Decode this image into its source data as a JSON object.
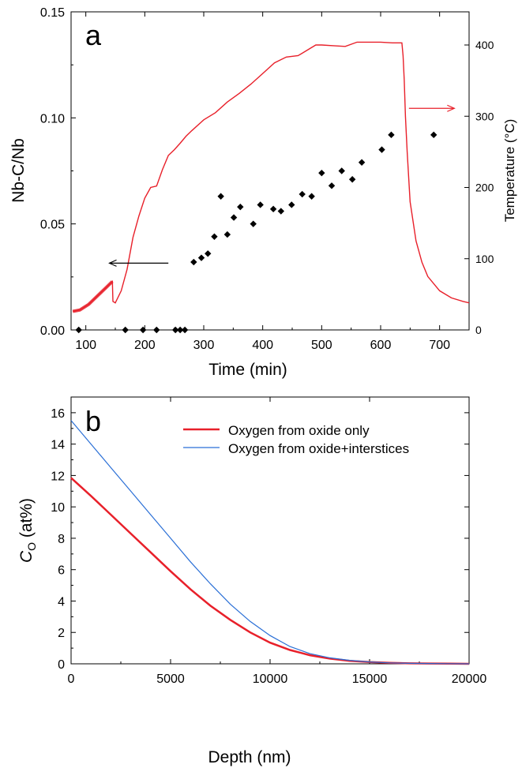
{
  "chart_data": [
    {
      "panel_label": "a",
      "type": "line+scatter",
      "xlabel": "Time (min)",
      "ylabel": "Nb-C/Nb",
      "y2label": "Temperature (°C)",
      "xlim": [
        75,
        750
      ],
      "ylim": [
        0,
        0.15
      ],
      "y2lim": [
        0,
        450
      ],
      "x_ticks": [
        100,
        200,
        300,
        400,
        500,
        600,
        700
      ],
      "y_ticks": [
        0.0,
        0.05,
        0.1,
        0.15
      ],
      "y2_ticks": [
        0,
        100,
        200,
        300,
        400
      ],
      "y_tick_labels": [
        "0.00",
        "0.05",
        "0.10",
        "0.15"
      ],
      "series": [
        {
          "axis": "left",
          "style": "scatter",
          "marker": "diamond",
          "color": "#000000",
          "points": [
            [
              88,
              0.0
            ],
            [
              167,
              0.0
            ],
            [
              197,
              0.0
            ],
            [
              220,
              0.0
            ],
            [
              252,
              0.0
            ],
            [
              260,
              0.0
            ],
            [
              268,
              0.0
            ],
            [
              283,
              0.032
            ],
            [
              296,
              0.034
            ],
            [
              307,
              0.036
            ],
            [
              318,
              0.044
            ],
            [
              329,
              0.063
            ],
            [
              340,
              0.045
            ],
            [
              351,
              0.053
            ],
            [
              362,
              0.058
            ],
            [
              384,
              0.05
            ],
            [
              396,
              0.059
            ],
            [
              418,
              0.057
            ],
            [
              431,
              0.056
            ],
            [
              449,
              0.059
            ],
            [
              467,
              0.064
            ],
            [
              483,
              0.063
            ],
            [
              500,
              0.074
            ],
            [
              517,
              0.068
            ],
            [
              534,
              0.075
            ],
            [
              552,
              0.071
            ],
            [
              568,
              0.079
            ],
            [
              602,
              0.085
            ],
            [
              618,
              0.092
            ],
            [
              690,
              0.092
            ]
          ]
        },
        {
          "axis": "right",
          "style": "line",
          "color": "#e8202a",
          "points": [
            [
              78,
              26
            ],
            [
              90,
              28
            ],
            [
              105,
              36
            ],
            [
              120,
              48
            ],
            [
              135,
              60
            ],
            [
              145,
              68
            ],
            [
              146,
              40
            ],
            [
              150,
              38
            ],
            [
              160,
              55
            ],
            [
              170,
              85
            ],
            [
              180,
              130
            ],
            [
              190,
              160
            ],
            [
              200,
              185
            ],
            [
              210,
              200
            ],
            [
              220,
              202
            ],
            [
              230,
              225
            ],
            [
              240,
              245
            ],
            [
              250,
              253
            ],
            [
              260,
              262
            ],
            [
              270,
              272
            ],
            [
              280,
              280
            ],
            [
              300,
              295
            ],
            [
              320,
              305
            ],
            [
              340,
              320
            ],
            [
              360,
              332
            ],
            [
              380,
              345
            ],
            [
              400,
              360
            ],
            [
              420,
              375
            ],
            [
              440,
              383
            ],
            [
              460,
              385
            ],
            [
              480,
              395
            ],
            [
              490,
              400
            ],
            [
              500,
              400
            ],
            [
              520,
              399
            ],
            [
              540,
              398
            ],
            [
              560,
              404
            ],
            [
              580,
              404
            ],
            [
              600,
              404
            ],
            [
              620,
              403
            ],
            [
              636,
              403
            ],
            [
              638,
              385
            ],
            [
              640,
              350
            ],
            [
              642,
              300
            ],
            [
              645,
              250
            ],
            [
              650,
              180
            ],
            [
              660,
              125
            ],
            [
              670,
              95
            ],
            [
              680,
              75
            ],
            [
              700,
              55
            ],
            [
              720,
              45
            ],
            [
              740,
              40
            ],
            [
              750,
              38
            ]
          ]
        }
      ],
      "annotations": [
        {
          "type": "arrow",
          "from": [
            240,
            0.0315
          ],
          "to": [
            140,
            0.0315
          ],
          "color": "#000000"
        },
        {
          "type": "arrow",
          "from": [
            648,
            0.1045
          ],
          "to": [
            725,
            0.1045
          ],
          "color": "#e8202a"
        }
      ]
    },
    {
      "panel_label": "b",
      "type": "line",
      "xlabel": "Depth (nm)",
      "ylabel_italic": "C",
      "ylabel_sub": "O",
      "ylabel_rest": " (at%)",
      "xlim": [
        0,
        20000
      ],
      "ylim": [
        0,
        17
      ],
      "x_ticks": [
        0,
        5000,
        10000,
        15000,
        20000
      ],
      "y_ticks": [
        0,
        2,
        4,
        6,
        8,
        10,
        12,
        14,
        16
      ],
      "legend": {
        "position": "top-right"
      },
      "series": [
        {
          "name": "Oxygen from oxide only",
          "color": "#e8202a",
          "stroke": "thick",
          "points": [
            [
              0,
              11.85
            ],
            [
              1000,
              10.7
            ],
            [
              2000,
              9.5
            ],
            [
              3000,
              8.3
            ],
            [
              4000,
              7.1
            ],
            [
              5000,
              5.9
            ],
            [
              6000,
              4.75
            ],
            [
              7000,
              3.7
            ],
            [
              8000,
              2.8
            ],
            [
              9000,
              2.0
            ],
            [
              10000,
              1.35
            ],
            [
              11000,
              0.88
            ],
            [
              12000,
              0.55
            ],
            [
              13000,
              0.33
            ],
            [
              14000,
              0.19
            ],
            [
              15000,
              0.11
            ],
            [
              16000,
              0.06
            ],
            [
              17000,
              0.03
            ],
            [
              18000,
              0.02
            ],
            [
              19000,
              0.01
            ],
            [
              20000,
              0.0
            ]
          ]
        },
        {
          "name": "Oxygen from oxide+interstices",
          "color": "#2a6fd6",
          "stroke": "thin",
          "points": [
            [
              0,
              15.5
            ],
            [
              1000,
              14.0
            ],
            [
              2000,
              12.5
            ],
            [
              3000,
              11.0
            ],
            [
              4000,
              9.5
            ],
            [
              5000,
              8.0
            ],
            [
              6000,
              6.5
            ],
            [
              7000,
              5.1
            ],
            [
              8000,
              3.8
            ],
            [
              9000,
              2.7
            ],
            [
              10000,
              1.8
            ],
            [
              11000,
              1.1
            ],
            [
              12000,
              0.65
            ],
            [
              13000,
              0.38
            ],
            [
              14000,
              0.22
            ],
            [
              15000,
              0.12
            ],
            [
              16000,
              0.06
            ],
            [
              17000,
              0.03
            ],
            [
              18000,
              0.02
            ],
            [
              19000,
              0.01
            ],
            [
              20000,
              0.0
            ]
          ]
        }
      ]
    }
  ]
}
